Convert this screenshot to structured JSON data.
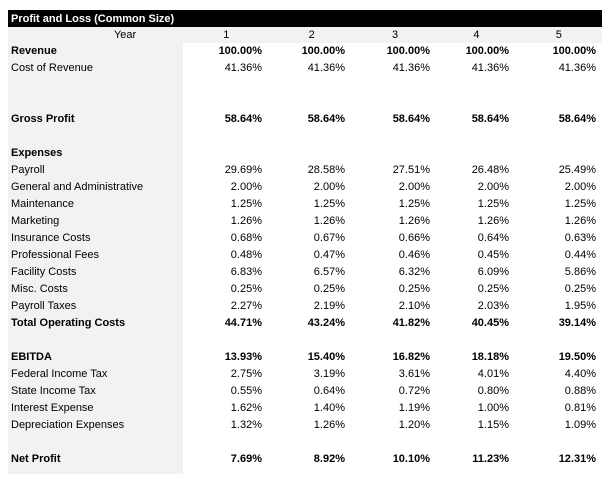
{
  "title": "Profit and Loss (Common Size)",
  "year_label": "Year",
  "years": [
    "1",
    "2",
    "3",
    "4",
    "5"
  ],
  "rows": [
    {
      "label": "Revenue",
      "bold": true,
      "values": [
        "100.00%",
        "100.00%",
        "100.00%",
        "100.00%",
        "100.00%"
      ]
    },
    {
      "label": "Cost of Revenue",
      "bold": false,
      "values": [
        "41.36%",
        "41.36%",
        "41.36%",
        "41.36%",
        "41.36%"
      ]
    },
    {
      "label": "",
      "bold": false,
      "values": []
    },
    {
      "label": "",
      "bold": false,
      "values": []
    },
    {
      "label": "Gross Profit",
      "bold": true,
      "values": [
        "58.64%",
        "58.64%",
        "58.64%",
        "58.64%",
        "58.64%"
      ]
    },
    {
      "label": "",
      "bold": false,
      "values": []
    },
    {
      "label": "Expenses",
      "bold": true,
      "values": []
    },
    {
      "label": "Payroll",
      "bold": false,
      "values": [
        "29.69%",
        "28.58%",
        "27.51%",
        "26.48%",
        "25.49%"
      ]
    },
    {
      "label": "General and Administrative",
      "bold": false,
      "values": [
        "2.00%",
        "2.00%",
        "2.00%",
        "2.00%",
        "2.00%"
      ]
    },
    {
      "label": "Maintenance",
      "bold": false,
      "values": [
        "1.25%",
        "1.25%",
        "1.25%",
        "1.25%",
        "1.25%"
      ]
    },
    {
      "label": "Marketing",
      "bold": false,
      "values": [
        "1.26%",
        "1.26%",
        "1.26%",
        "1.26%",
        "1.26%"
      ]
    },
    {
      "label": "Insurance Costs",
      "bold": false,
      "values": [
        "0.68%",
        "0.67%",
        "0.66%",
        "0.64%",
        "0.63%"
      ]
    },
    {
      "label": "Professional Fees",
      "bold": false,
      "values": [
        "0.48%",
        "0.47%",
        "0.46%",
        "0.45%",
        "0.44%"
      ]
    },
    {
      "label": "Facility Costs",
      "bold": false,
      "values": [
        "6.83%",
        "6.57%",
        "6.32%",
        "6.09%",
        "5.86%"
      ]
    },
    {
      "label": "Misc. Costs",
      "bold": false,
      "values": [
        "0.25%",
        "0.25%",
        "0.25%",
        "0.25%",
        "0.25%"
      ]
    },
    {
      "label": "Payroll Taxes",
      "bold": false,
      "values": [
        "2.27%",
        "2.19%",
        "2.10%",
        "2.03%",
        "1.95%"
      ]
    },
    {
      "label": "Total Operating Costs",
      "bold": true,
      "values": [
        "44.71%",
        "43.24%",
        "41.82%",
        "40.45%",
        "39.14%"
      ]
    },
    {
      "label": "",
      "bold": false,
      "values": []
    },
    {
      "label": "EBITDA",
      "bold": true,
      "values": [
        "13.93%",
        "15.40%",
        "16.82%",
        "18.18%",
        "19.50%"
      ]
    },
    {
      "label": "Federal Income Tax",
      "bold": false,
      "values": [
        "2.75%",
        "3.19%",
        "3.61%",
        "4.01%",
        "4.40%"
      ]
    },
    {
      "label": "State Income Tax",
      "bold": false,
      "values": [
        "0.55%",
        "0.64%",
        "0.72%",
        "0.80%",
        "0.88%"
      ]
    },
    {
      "label": "Interest Expense",
      "bold": false,
      "values": [
        "1.62%",
        "1.40%",
        "1.19%",
        "1.00%",
        "0.81%"
      ]
    },
    {
      "label": "Depreciation Expenses",
      "bold": false,
      "values": [
        "1.32%",
        "1.26%",
        "1.20%",
        "1.15%",
        "1.09%"
      ]
    },
    {
      "label": "",
      "bold": false,
      "values": []
    },
    {
      "label": "Net Profit",
      "bold": true,
      "values": [
        "7.69%",
        "8.92%",
        "10.10%",
        "11.23%",
        "12.31%"
      ]
    }
  ]
}
